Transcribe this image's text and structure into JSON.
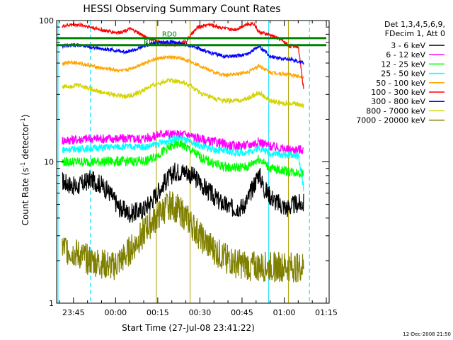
{
  "chart_data": {
    "type": "line",
    "title": "HESSI Observing Summary Count Rates",
    "xlabel": "Start Time (27-Jul-08 23:41:22)",
    "ylabel_main": "Count Rate (s",
    "ylabel_sup1": "-1",
    "ylabel_mid": " detector",
    "ylabel_sup2": "-1",
    "ylabel_end": ")",
    "yscale": "log",
    "ylim": [
      1,
      100
    ],
    "xlim_minutes": [
      -2,
      95
    ],
    "x_tick_labels": [
      "23:45",
      "00:00",
      "00:15",
      "00:30",
      "00:45",
      "01:00",
      "01:15"
    ],
    "y_tick_labels": [
      "1",
      "10",
      "100"
    ],
    "legend_header": [
      "Det 1,3,4,5,6,9,",
      "FDecim 1, Att 0"
    ],
    "footer_date": "12-Dec-2008 21:50",
    "annotations": {
      "rd_plus": "RD+",
      "rd_zero": "RD0"
    },
    "series": [
      {
        "name": "3 - 6 keV",
        "color": "#000000",
        "values": [
          [
            0,
            7.3
          ],
          [
            5,
            6.6
          ],
          [
            10,
            7.5
          ],
          [
            14,
            6.9
          ],
          [
            17,
            6.0
          ],
          [
            20,
            4.8
          ],
          [
            24,
            4.3
          ],
          [
            29,
            4.6
          ],
          [
            32,
            5.4
          ],
          [
            36,
            7.0
          ],
          [
            40,
            8.5
          ],
          [
            44,
            8.6
          ],
          [
            48,
            7.5
          ],
          [
            52,
            6.2
          ],
          [
            56,
            5.2
          ],
          [
            60,
            4.7
          ],
          [
            64,
            4.8
          ],
          [
            66,
            5.4
          ],
          [
            70,
            8.3
          ],
          [
            72,
            6.4
          ],
          [
            76,
            5.2
          ],
          [
            80,
            4.7
          ],
          [
            83,
            5.0
          ],
          [
            86,
            5.1
          ]
        ]
      },
      {
        "name": "6 - 12 keV",
        "color": "#ff00ff",
        "values": [
          [
            0,
            14.2
          ],
          [
            10,
            14.6
          ],
          [
            20,
            14.6
          ],
          [
            28,
            14.6
          ],
          [
            32,
            15.0
          ],
          [
            36,
            16.0
          ],
          [
            40,
            15.5
          ],
          [
            44,
            15.7
          ],
          [
            48,
            14.8
          ],
          [
            52,
            14.0
          ],
          [
            56,
            13.6
          ],
          [
            60,
            13.0
          ],
          [
            66,
            13.1
          ],
          [
            70,
            13.9
          ],
          [
            74,
            12.9
          ],
          [
            80,
            12.2
          ],
          [
            86,
            12.2
          ]
        ]
      },
      {
        "name": "12 - 25 keV",
        "color": "#00ff00",
        "values": [
          [
            0,
            10.0
          ],
          [
            10,
            10.0
          ],
          [
            20,
            10.1
          ],
          [
            30,
            10.1
          ],
          [
            34,
            11.2
          ],
          [
            38,
            12.6
          ],
          [
            42,
            13.5
          ],
          [
            46,
            12.0
          ],
          [
            50,
            10.5
          ],
          [
            56,
            9.4
          ],
          [
            60,
            9.1
          ],
          [
            66,
            9.2
          ],
          [
            70,
            10.6
          ],
          [
            74,
            9.0
          ],
          [
            80,
            8.6
          ],
          [
            86,
            8.3
          ]
        ]
      },
      {
        "name": "25 - 50 keV",
        "color": "#00ffff",
        "values": [
          [
            0,
            12.2
          ],
          [
            10,
            12.5
          ],
          [
            20,
            12.8
          ],
          [
            30,
            12.8
          ],
          [
            34,
            13.4
          ],
          [
            38,
            14.2
          ],
          [
            42,
            14.8
          ],
          [
            46,
            13.6
          ],
          [
            50,
            12.8
          ],
          [
            56,
            12.0
          ],
          [
            62,
            11.6
          ],
          [
            66,
            11.7
          ],
          [
            70,
            12.6
          ],
          [
            74,
            11.5
          ],
          [
            80,
            11.2
          ],
          [
            84,
            11.0
          ],
          [
            86,
            6.4
          ]
        ]
      },
      {
        "name": "50 - 100 keV",
        "color": "#ffa500",
        "values": [
          [
            0,
            49
          ],
          [
            3,
            51
          ],
          [
            10,
            48
          ],
          [
            14,
            46
          ],
          [
            18,
            45
          ],
          [
            22,
            44
          ],
          [
            26,
            47
          ],
          [
            30,
            51
          ],
          [
            34,
            54
          ],
          [
            38,
            55
          ],
          [
            42,
            54
          ],
          [
            46,
            51
          ],
          [
            50,
            47
          ],
          [
            54,
            43
          ],
          [
            58,
            41
          ],
          [
            62,
            42
          ],
          [
            66,
            43
          ],
          [
            70,
            48
          ],
          [
            74,
            43
          ],
          [
            78,
            42
          ],
          [
            82,
            41
          ],
          [
            86,
            40
          ]
        ]
      },
      {
        "name": "100 - 300 keV",
        "color": "#ff0000",
        "values": [
          [
            0,
            91
          ],
          [
            4,
            94
          ],
          [
            8,
            92
          ],
          [
            12,
            88
          ],
          [
            16,
            84
          ],
          [
            20,
            82
          ],
          [
            24,
            87
          ],
          [
            26,
            84
          ],
          [
            30,
            76
          ],
          [
            34,
            71
          ],
          [
            37,
            68
          ],
          [
            40,
            68
          ],
          [
            44,
            71
          ],
          [
            48,
            89
          ],
          [
            52,
            94
          ],
          [
            56,
            90
          ],
          [
            60,
            86
          ],
          [
            62,
            87
          ],
          [
            65,
            93
          ],
          [
            68,
            96
          ],
          [
            70,
            83
          ],
          [
            74,
            79
          ],
          [
            78,
            73
          ],
          [
            81,
            66
          ],
          [
            84,
            66
          ],
          [
            86,
            32
          ]
        ]
      },
      {
        "name": "300 - 800 keV",
        "color": "#0000ff",
        "values": [
          [
            0,
            66
          ],
          [
            6,
            67
          ],
          [
            10,
            65
          ],
          [
            14,
            63
          ],
          [
            18,
            62
          ],
          [
            22,
            60
          ],
          [
            26,
            62
          ],
          [
            30,
            67
          ],
          [
            34,
            70
          ],
          [
            38,
            71
          ],
          [
            42,
            69
          ],
          [
            46,
            66
          ],
          [
            50,
            62
          ],
          [
            54,
            58
          ],
          [
            58,
            56
          ],
          [
            62,
            56
          ],
          [
            66,
            58
          ],
          [
            70,
            66
          ],
          [
            74,
            56
          ],
          [
            78,
            54
          ],
          [
            82,
            53
          ],
          [
            86,
            50
          ]
        ]
      },
      {
        "name": "800 - 7000 keV",
        "color": "#d4d400",
        "values": [
          [
            0,
            34
          ],
          [
            6,
            35
          ],
          [
            10,
            33
          ],
          [
            14,
            31
          ],
          [
            18,
            30
          ],
          [
            22,
            29
          ],
          [
            26,
            30
          ],
          [
            30,
            33
          ],
          [
            34,
            36
          ],
          [
            38,
            38
          ],
          [
            42,
            37
          ],
          [
            46,
            34
          ],
          [
            50,
            30
          ],
          [
            54,
            28
          ],
          [
            58,
            27
          ],
          [
            62,
            27
          ],
          [
            66,
            28
          ],
          [
            70,
            31
          ],
          [
            74,
            27
          ],
          [
            78,
            26
          ],
          [
            82,
            26
          ],
          [
            86,
            25
          ]
        ]
      },
      {
        "name": "7000 - 20000 keV",
        "color": "#808000",
        "values": [
          [
            0,
            2.5
          ],
          [
            10,
            2.0
          ],
          [
            18,
            1.8
          ],
          [
            22,
            2.1
          ],
          [
            26,
            2.6
          ],
          [
            30,
            3.4
          ],
          [
            34,
            4.1
          ],
          [
            38,
            5.0
          ],
          [
            42,
            4.5
          ],
          [
            46,
            3.6
          ],
          [
            50,
            2.8
          ],
          [
            56,
            2.2
          ],
          [
            62,
            1.9
          ],
          [
            70,
            1.8
          ],
          [
            78,
            1.8
          ],
          [
            86,
            1.8
          ]
        ]
      }
    ],
    "rd_lines": [
      {
        "name": "RD+",
        "color": "#008000",
        "values": [
          [
            -2,
            75
          ],
          [
            94,
            75
          ]
        ]
      },
      {
        "name": "RD0",
        "color": "#008000",
        "values": [
          [
            -2,
            67
          ],
          [
            94,
            67
          ]
        ]
      }
    ]
  }
}
